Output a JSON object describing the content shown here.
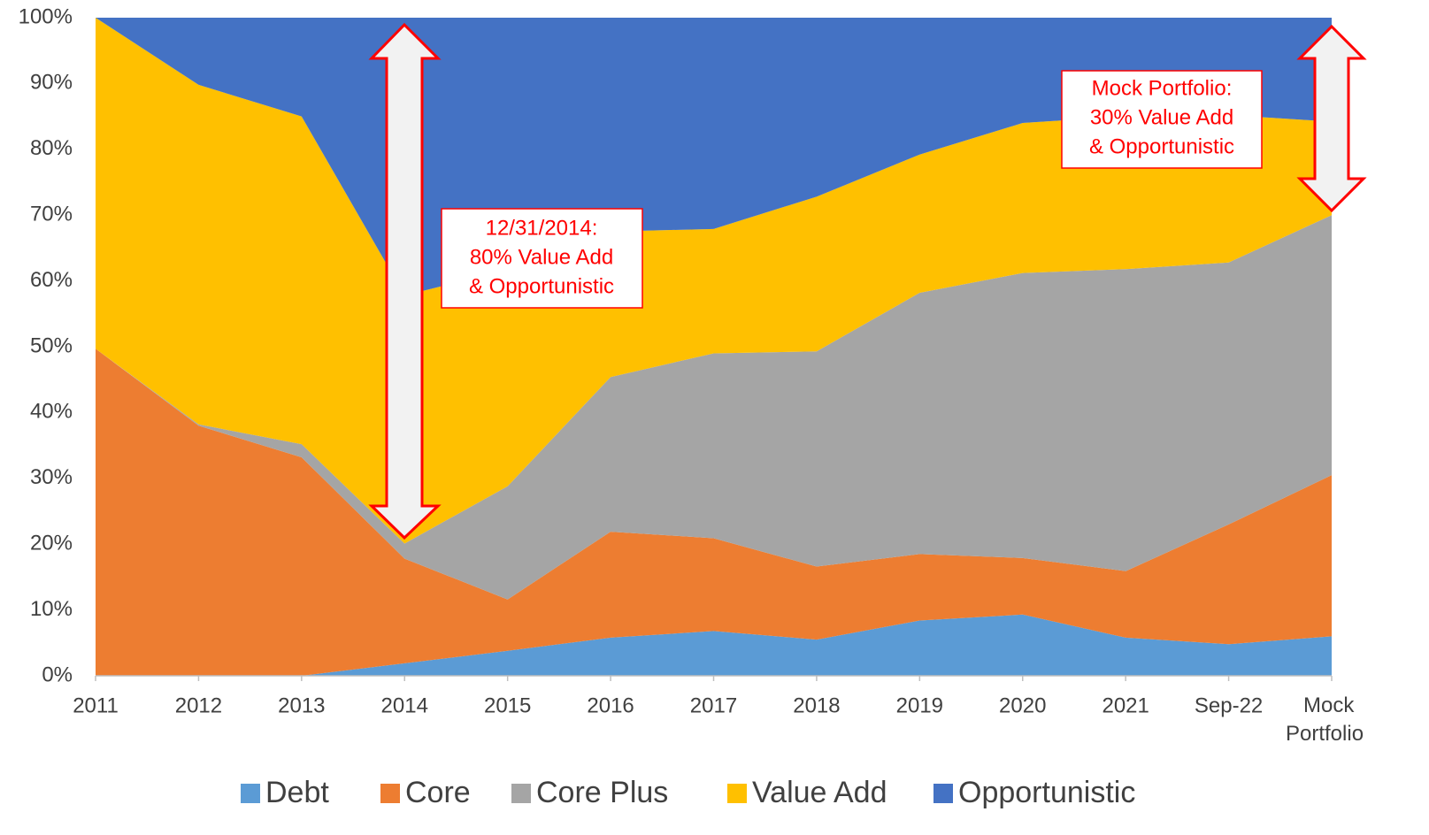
{
  "chart_data": {
    "type": "stacked_area",
    "categories": [
      "2011",
      "2012",
      "2013",
      "2014",
      "2015",
      "2016",
      "2017",
      "2018",
      "2019",
      "2020",
      "2021",
      "Sep-22",
      "Mock Portfolio"
    ],
    "series": [
      {
        "name": "Debt",
        "color": "#5b9bd5",
        "values": [
          0,
          0,
          0,
          1.9,
          3.8,
          5.8,
          6.8,
          5.5,
          8.4,
          9.3,
          5.8,
          4.8,
          6
        ]
      },
      {
        "name": "Core",
        "color": "#ed7d31",
        "values": [
          49.7,
          38,
          33.2,
          15.9,
          7.8,
          16.1,
          14.1,
          11.1,
          10.1,
          8.6,
          10.1,
          18.2,
          24.5
        ]
      },
      {
        "name": "Core Plus",
        "color": "#a5a5a5",
        "values": [
          0,
          0.2,
          2,
          2.3,
          17.2,
          23.5,
          28.1,
          32.7,
          39.7,
          43.3,
          45.9,
          39.8,
          39.5
        ]
      },
      {
        "name": "Value Add",
        "color": "#ffc000",
        "values": [
          50.3,
          51.6,
          49.8,
          37.7,
          32.9,
          22.1,
          18.9,
          23.5,
          21,
          22.8,
          23.2,
          22.4,
          14.2
        ]
      },
      {
        "name": "Opportunistic",
        "color": "#4472c4",
        "values": [
          0,
          10.2,
          15,
          42.2,
          38.3,
          32.5,
          32.1,
          27.2,
          20.8,
          16,
          15,
          14.8,
          15.8
        ]
      }
    ],
    "ylim": [
      0,
      100
    ],
    "yticks": [
      {
        "value": 0,
        "label": "0%"
      },
      {
        "value": 10,
        "label": "10%"
      },
      {
        "value": 20,
        "label": "20%"
      },
      {
        "value": 30,
        "label": "30%"
      },
      {
        "value": 40,
        "label": "40%"
      },
      {
        "value": 50,
        "label": "50%"
      },
      {
        "value": 60,
        "label": "60%"
      },
      {
        "value": 70,
        "label": "70%"
      },
      {
        "value": 80,
        "label": "80%"
      },
      {
        "value": 90,
        "label": "90%"
      },
      {
        "value": 100,
        "label": "100%"
      }
    ],
    "legend": "bottom",
    "annotations": [
      {
        "lines": [
          "12/31/2014:",
          "80% Value Add",
          "& Opportunistic"
        ]
      },
      {
        "lines": [
          "Mock Portfolio:",
          "30% Value Add",
          "& Opportunistic"
        ]
      }
    ]
  }
}
